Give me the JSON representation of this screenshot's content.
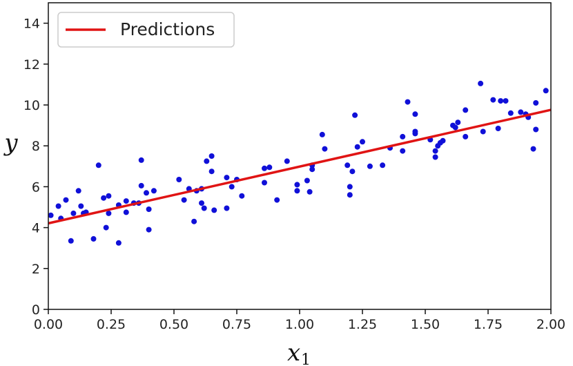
{
  "chart_data": {
    "type": "scatter",
    "xlabel": "x",
    "xlabel_subscript": "1",
    "ylabel": "y",
    "xlim": [
      0,
      2
    ],
    "ylim": [
      0,
      15
    ],
    "xticks": [
      0.0,
      0.25,
      0.5,
      0.75,
      1.0,
      1.25,
      1.5,
      1.75,
      2.0
    ],
    "xtick_labels": [
      "0.00",
      "0.25",
      "0.50",
      "0.75",
      "1.00",
      "1.25",
      "1.50",
      "1.75",
      "2.00"
    ],
    "yticks": [
      0,
      2,
      4,
      6,
      8,
      10,
      12,
      14
    ],
    "ytick_labels": [
      "0",
      "2",
      "4",
      "6",
      "8",
      "10",
      "12",
      "14"
    ],
    "grid": false,
    "legend": {
      "position": "top-left",
      "entries": [
        "Predictions"
      ]
    },
    "series": [
      {
        "kind": "scatter",
        "color": "#1010d8",
        "points": [
          [
            0.01,
            4.6
          ],
          [
            0.04,
            5.05
          ],
          [
            0.05,
            4.45
          ],
          [
            0.07,
            5.35
          ],
          [
            0.09,
            3.35
          ],
          [
            0.1,
            4.7
          ],
          [
            0.12,
            5.8
          ],
          [
            0.13,
            5.05
          ],
          [
            0.14,
            4.7
          ],
          [
            0.15,
            4.75
          ],
          [
            0.18,
            3.45
          ],
          [
            0.2,
            7.05
          ],
          [
            0.22,
            5.45
          ],
          [
            0.23,
            4.0
          ],
          [
            0.24,
            5.55
          ],
          [
            0.24,
            4.7
          ],
          [
            0.28,
            3.25
          ],
          [
            0.28,
            5.1
          ],
          [
            0.31,
            5.3
          ],
          [
            0.31,
            4.75
          ],
          [
            0.34,
            5.2
          ],
          [
            0.36,
            5.2
          ],
          [
            0.37,
            7.3
          ],
          [
            0.37,
            6.05
          ],
          [
            0.39,
            5.7
          ],
          [
            0.4,
            3.9
          ],
          [
            0.4,
            4.9
          ],
          [
            0.42,
            5.8
          ],
          [
            0.52,
            6.35
          ],
          [
            0.54,
            5.35
          ],
          [
            0.56,
            5.9
          ],
          [
            0.58,
            4.3
          ],
          [
            0.59,
            5.8
          ],
          [
            0.61,
            5.2
          ],
          [
            0.61,
            5.9
          ],
          [
            0.62,
            4.95
          ],
          [
            0.63,
            7.25
          ],
          [
            0.65,
            6.75
          ],
          [
            0.65,
            7.5
          ],
          [
            0.66,
            4.85
          ],
          [
            0.71,
            4.95
          ],
          [
            0.71,
            6.45
          ],
          [
            0.73,
            6.0
          ],
          [
            0.75,
            6.35
          ],
          [
            0.77,
            5.55
          ],
          [
            0.86,
            6.9
          ],
          [
            0.86,
            6.2
          ],
          [
            0.88,
            6.95
          ],
          [
            0.91,
            5.35
          ],
          [
            0.95,
            7.25
          ],
          [
            0.99,
            6.1
          ],
          [
            0.99,
            5.8
          ],
          [
            1.03,
            6.3
          ],
          [
            1.04,
            5.75
          ],
          [
            1.05,
            6.85
          ],
          [
            1.05,
            7.05
          ],
          [
            1.09,
            8.55
          ],
          [
            1.1,
            7.85
          ],
          [
            1.19,
            7.05
          ],
          [
            1.2,
            6.0
          ],
          [
            1.2,
            5.6
          ],
          [
            1.21,
            6.75
          ],
          [
            1.22,
            9.5
          ],
          [
            1.23,
            7.95
          ],
          [
            1.25,
            8.2
          ],
          [
            1.28,
            7.0
          ],
          [
            1.33,
            7.05
          ],
          [
            1.36,
            7.9
          ],
          [
            1.41,
            8.45
          ],
          [
            1.41,
            7.75
          ],
          [
            1.43,
            10.15
          ],
          [
            1.46,
            8.6
          ],
          [
            1.46,
            8.7
          ],
          [
            1.46,
            9.55
          ],
          [
            1.52,
            8.3
          ],
          [
            1.54,
            7.75
          ],
          [
            1.54,
            7.45
          ],
          [
            1.55,
            8.0
          ],
          [
            1.56,
            8.15
          ],
          [
            1.57,
            8.25
          ],
          [
            1.61,
            9.0
          ],
          [
            1.62,
            8.9
          ],
          [
            1.63,
            9.15
          ],
          [
            1.66,
            9.75
          ],
          [
            1.66,
            8.45
          ],
          [
            1.72,
            11.05
          ],
          [
            1.73,
            8.7
          ],
          [
            1.77,
            10.25
          ],
          [
            1.79,
            8.85
          ],
          [
            1.8,
            10.2
          ],
          [
            1.82,
            10.2
          ],
          [
            1.84,
            9.6
          ],
          [
            1.88,
            9.65
          ],
          [
            1.9,
            9.55
          ],
          [
            1.91,
            9.4
          ],
          [
            1.93,
            7.85
          ],
          [
            1.94,
            8.8
          ],
          [
            1.94,
            10.1
          ],
          [
            1.98,
            10.7
          ]
        ]
      },
      {
        "name": "Predictions",
        "kind": "line",
        "color": "#e01414",
        "x": [
          0,
          2
        ],
        "y": [
          4.21,
          9.76
        ]
      }
    ]
  }
}
